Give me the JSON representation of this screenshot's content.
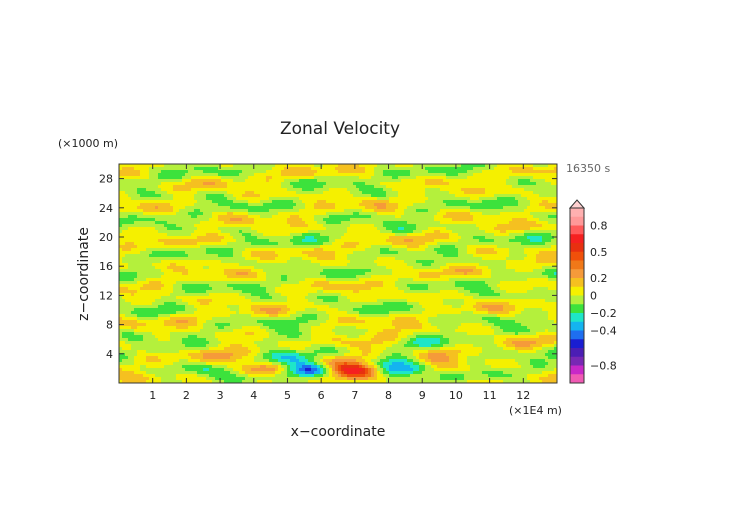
{
  "chart_data": {
    "type": "heatmap",
    "title": "Zonal Velocity",
    "xlabel": "x−coordinate",
    "ylabel": "z−coordinate",
    "x_unit": "(×1E4 m)",
    "y_unit": "(×1000 m)",
    "time_label": "16350 s",
    "xlim": [
      0,
      13
    ],
    "ylim": [
      0,
      30
    ],
    "x_ticks": [
      1,
      2,
      3,
      4,
      5,
      6,
      7,
      8,
      9,
      10,
      11,
      12
    ],
    "y_ticks": [
      4,
      8,
      12,
      16,
      20,
      24,
      28
    ],
    "colorbar": {
      "tick_labels": [
        "0.8",
        "0.5",
        "0.2",
        "0",
        "−0.2",
        "−0.4",
        "−0.8"
      ],
      "tick_values": [
        0.8,
        0.5,
        0.2,
        0,
        -0.2,
        -0.4,
        -0.8
      ],
      "levels": [
        {
          "min": 0.9,
          "max": 1.0,
          "color": "#ffb0b0"
        },
        {
          "min": 0.8,
          "max": 0.9,
          "color": "#ff9999"
        },
        {
          "min": 0.7,
          "max": 0.8,
          "color": "#ff5a5a"
        },
        {
          "min": 0.6,
          "max": 0.7,
          "color": "#f52020"
        },
        {
          "min": 0.5,
          "max": 0.6,
          "color": "#e83010"
        },
        {
          "min": 0.4,
          "max": 0.5,
          "color": "#f0500a"
        },
        {
          "min": 0.3,
          "max": 0.4,
          "color": "#f07818"
        },
        {
          "min": 0.2,
          "max": 0.3,
          "color": "#f59a3a"
        },
        {
          "min": 0.1,
          "max": 0.2,
          "color": "#f5c020"
        },
        {
          "min": 0.0,
          "max": 0.1,
          "color": "#f5f000"
        },
        {
          "min": -0.1,
          "max": 0.0,
          "color": "#b4f03c"
        },
        {
          "min": -0.2,
          "max": -0.1,
          "color": "#3ce23c"
        },
        {
          "min": -0.3,
          "max": -0.2,
          "color": "#1ee6c8"
        },
        {
          "min": -0.4,
          "max": -0.3,
          "color": "#14b4f0"
        },
        {
          "min": -0.5,
          "max": -0.4,
          "color": "#1e6ef0"
        },
        {
          "min": -0.6,
          "max": -0.5,
          "color": "#1a1ed2"
        },
        {
          "min": -0.7,
          "max": -0.6,
          "color": "#4b1eb4"
        },
        {
          "min": -0.8,
          "max": -0.7,
          "color": "#7828b4"
        },
        {
          "min": -0.9,
          "max": -0.8,
          "color": "#c828c8"
        },
        {
          "min": -1.0,
          "max": -0.9,
          "color": "#f05ab4"
        }
      ]
    },
    "field_description": "Layered horizontal bands of positive and negative zonal velocity; strongest anomalies near the surface (z < 4) between x = 3.5 and 9.5, roughly symmetric about x = 6.5."
  }
}
